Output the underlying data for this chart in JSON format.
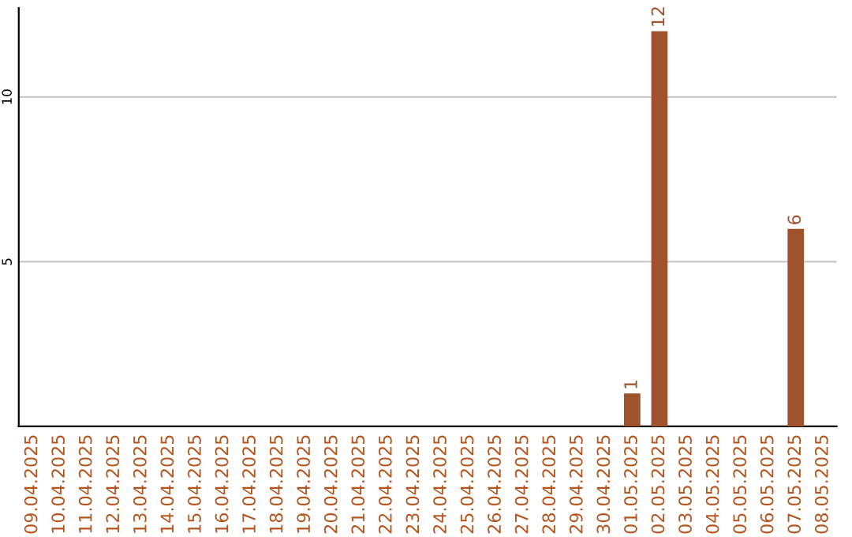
{
  "chart_data": {
    "type": "bar",
    "categories": [
      "09.04.2025",
      "10.04.2025",
      "11.04.2025",
      "12.04.2025",
      "13.04.2025",
      "14.04.2025",
      "15.04.2025",
      "16.04.2025",
      "17.04.2025",
      "18.04.2025",
      "19.04.2025",
      "20.04.2025",
      "21.04.2025",
      "22.04.2025",
      "23.04.2025",
      "24.04.2025",
      "25.04.2025",
      "26.04.2025",
      "27.04.2025",
      "28.04.2025",
      "29.04.2025",
      "30.04.2025",
      "01.05.2025",
      "02.05.2025",
      "03.05.2025",
      "04.05.2025",
      "05.05.2025",
      "06.05.2025",
      "07.05.2025",
      "08.05.2025"
    ],
    "values": [
      0,
      0,
      0,
      0,
      0,
      0,
      0,
      0,
      0,
      0,
      0,
      0,
      0,
      0,
      0,
      0,
      0,
      0,
      0,
      0,
      0,
      0,
      1,
      12,
      0,
      0,
      0,
      0,
      6,
      0
    ],
    "color": "#a0522d",
    "ylim": [
      0,
      12.7
    ],
    "yticks": [
      5,
      10
    ],
    "grid": "y",
    "value_labels": [
      null,
      null,
      null,
      null,
      null,
      null,
      null,
      null,
      null,
      null,
      null,
      null,
      null,
      null,
      null,
      null,
      null,
      null,
      null,
      null,
      null,
      null,
      "1",
      "12",
      null,
      null,
      null,
      null,
      "6",
      null
    ]
  }
}
